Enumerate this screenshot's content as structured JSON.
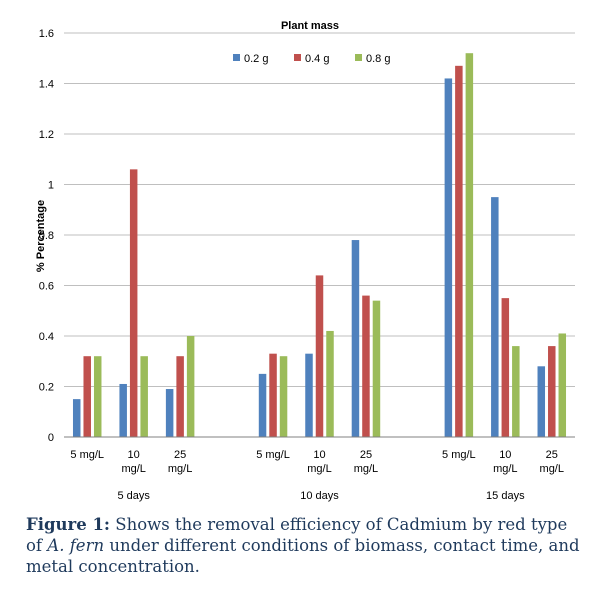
{
  "chart_data": {
    "type": "bar",
    "title": "Plant mass",
    "ylabel": "% Percentage",
    "xlabel": "",
    "ylim": [
      0,
      1.6
    ],
    "yticks": [
      "0",
      "0.2",
      "0.4",
      "0.6",
      "0.8",
      "1",
      "1.2",
      "1.4",
      "1.6"
    ],
    "grid": true,
    "legend_position": "top-center",
    "groups": [
      {
        "label": "5 days",
        "categories": [
          [
            "5 mg/L"
          ],
          [
            "10",
            "mg/L"
          ],
          [
            "25",
            "mg/L"
          ]
        ]
      },
      {
        "label": "10 days",
        "categories": [
          [
            "5 mg/L"
          ],
          [
            "10",
            "mg/L"
          ],
          [
            "25",
            "mg/L"
          ]
        ]
      },
      {
        "label": "15 days",
        "categories": [
          [
            "5 mg/L"
          ],
          [
            "10",
            "mg/L"
          ],
          [
            "25",
            "mg/L"
          ]
        ]
      }
    ],
    "series": [
      {
        "name": "0.2 g",
        "color": "#4f81bd",
        "values": [
          0.15,
          0.21,
          0.19,
          0.25,
          0.33,
          0.78,
          1.42,
          0.95,
          0.28
        ]
      },
      {
        "name": "0.4 g",
        "color": "#c0504d",
        "values": [
          0.32,
          1.06,
          0.32,
          0.33,
          0.64,
          0.56,
          1.47,
          0.55,
          0.36
        ]
      },
      {
        "name": "0.8 g",
        "color": "#9bbb59",
        "values": [
          0.32,
          0.32,
          0.4,
          0.32,
          0.42,
          0.54,
          1.52,
          0.36,
          0.41
        ]
      }
    ]
  },
  "caption": {
    "label": "Figure 1:",
    "text_before": " Shows the removal efficiency of Cadmium by red type of ",
    "species": "A. fern",
    "text_after": " under different conditions of biomass, contact time, and metal concentration."
  }
}
